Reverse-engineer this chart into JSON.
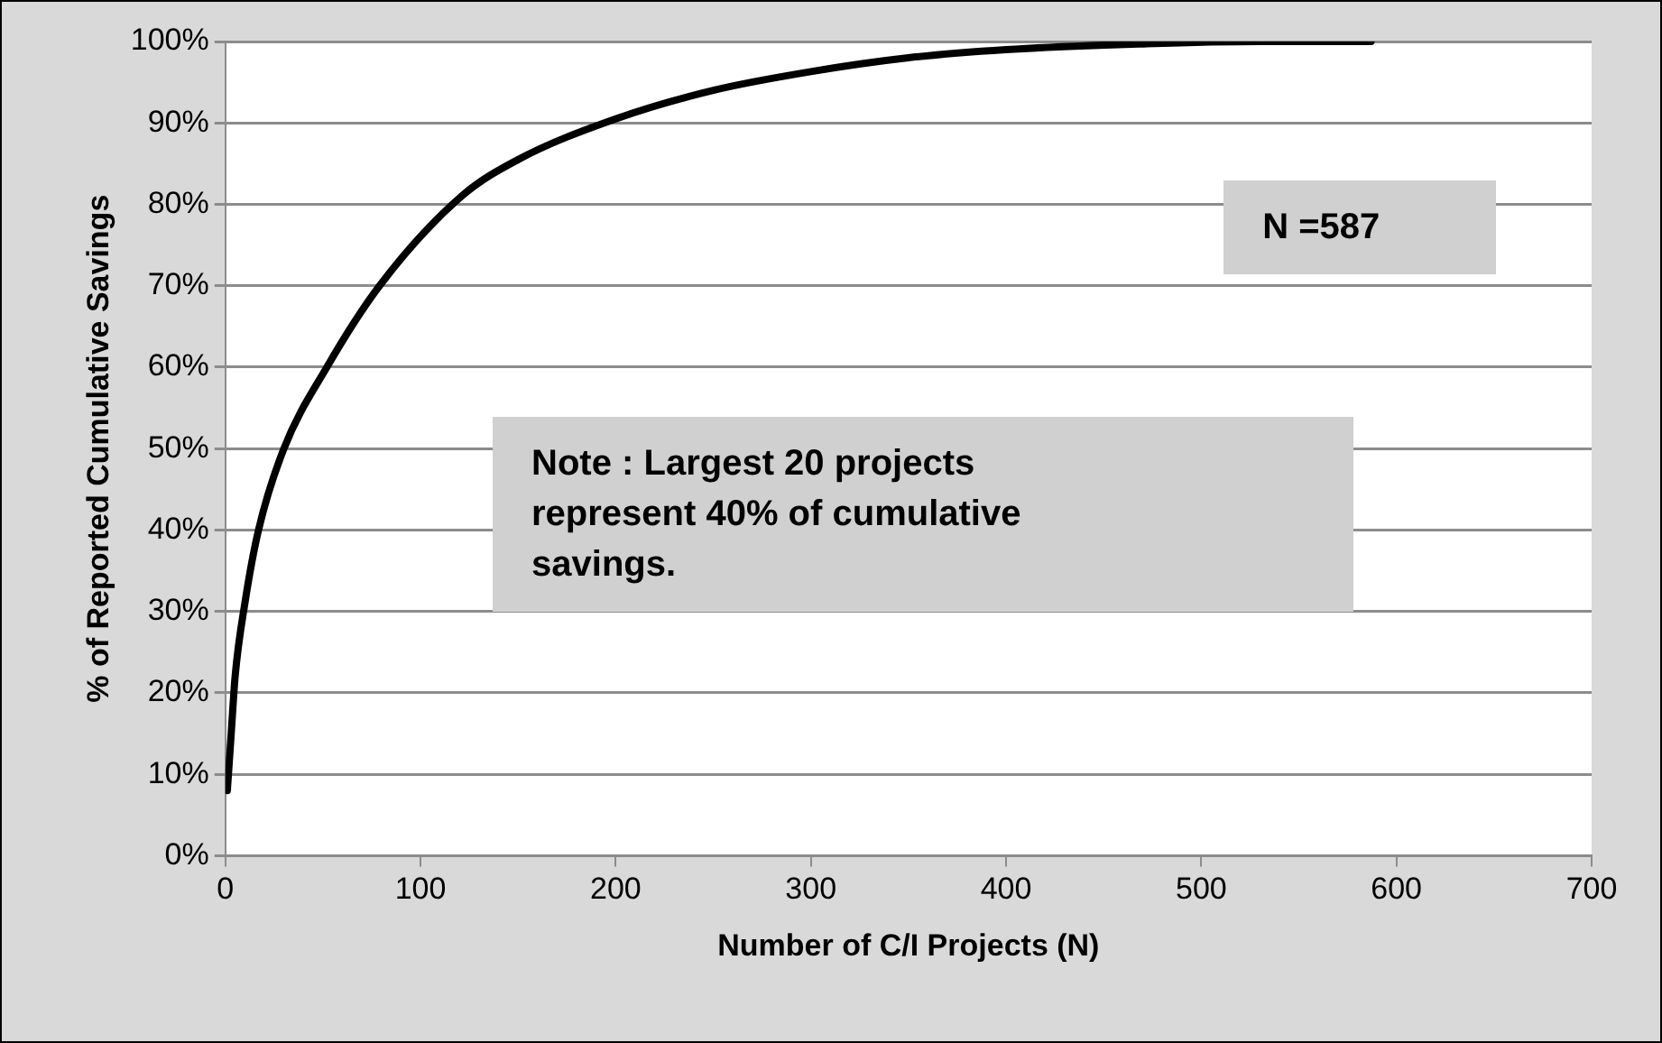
{
  "chart_data": {
    "type": "line",
    "xlabel": "Number of C/I Projects (N)",
    "ylabel": "% of Reported Cumulative Savings",
    "x": [
      1,
      3,
      5,
      10,
      17,
      30,
      52,
      79,
      121,
      150,
      200,
      250,
      300,
      350,
      400,
      468,
      530,
      587
    ],
    "series": [
      {
        "color": "#000000",
        "values": [
          8,
          15,
          22,
          31,
          40,
          50,
          60,
          70,
          81,
          85.5,
          90.5,
          94,
          96.3,
          98,
          99,
          99.7,
          100,
          100
        ]
      }
    ],
    "xlim": [
      0,
      700
    ],
    "xticks": [
      0,
      100,
      200,
      300,
      400,
      500,
      600,
      700
    ],
    "ylim": [
      0,
      100
    ],
    "yticks": [
      {
        "value": 0,
        "label": "0%"
      },
      {
        "value": 10,
        "label": "10%"
      },
      {
        "value": 20,
        "label": "20%"
      },
      {
        "value": 30,
        "label": "30%"
      },
      {
        "value": 40,
        "label": "40%"
      },
      {
        "value": 50,
        "label": "50%"
      },
      {
        "value": 60,
        "label": "60%"
      },
      {
        "value": 70,
        "label": "70%"
      },
      {
        "value": 80,
        "label": "80%"
      },
      {
        "value": 90,
        "label": "90%"
      },
      {
        "value": 100,
        "label": "100%"
      }
    ],
    "grid": "y",
    "legend": false,
    "marker": "none",
    "line_style": "solid",
    "annotations": [
      "N =587",
      "Note : Largest 20 projects represent 40% of cumulative savings."
    ]
  }
}
